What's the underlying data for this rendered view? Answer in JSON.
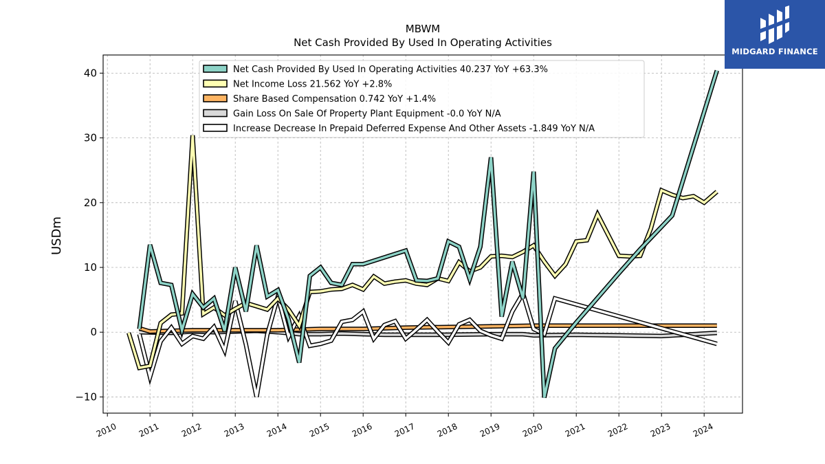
{
  "chart_data": {
    "type": "line",
    "title": "MBWM",
    "subtitle": "Net Cash Provided By Used In Operating Activities",
    "xlabel": "",
    "ylabel": "USDm",
    "xlim": [
      2009.9,
      2024.9
    ],
    "ylim": [
      -12.5,
      42.8
    ],
    "yticks": [
      -10,
      0,
      10,
      20,
      30,
      40
    ],
    "ytick_labels": [
      "−10",
      "0",
      "10",
      "20",
      "30",
      "40"
    ],
    "xticks": [
      2010,
      2011,
      2012,
      2013,
      2014,
      2015,
      2016,
      2017,
      2018,
      2019,
      2020,
      2021,
      2022,
      2023,
      2024
    ],
    "xtick_labels": [
      "2010",
      "2011",
      "2012",
      "2013",
      "2014",
      "2015",
      "2016",
      "2017",
      "2018",
      "2019",
      "2020",
      "2021",
      "2022",
      "2023",
      "2024"
    ],
    "grid": true,
    "legend_position": "top-center",
    "series": [
      {
        "name": "Net Cash Provided By Used In Operating Activities  40.237 YoY +63.3%",
        "color": "#8dd3c7",
        "points": [
          [
            2010.75,
            0.5
          ],
          [
            2011.0,
            13.5
          ],
          [
            2011.25,
            7.6
          ],
          [
            2011.5,
            7.3
          ],
          [
            2011.75,
            0.3
          ],
          [
            2012.0,
            5.9
          ],
          [
            2012.25,
            3.8
          ],
          [
            2012.5,
            5.2
          ],
          [
            2012.75,
            0.2
          ],
          [
            2013.0,
            10.0
          ],
          [
            2013.25,
            3.2
          ],
          [
            2013.5,
            13.4
          ],
          [
            2013.75,
            5.5
          ],
          [
            2014.0,
            6.5
          ],
          [
            2014.25,
            2.0
          ],
          [
            2014.5,
            -4.7
          ],
          [
            2014.75,
            8.7
          ],
          [
            2015.0,
            10.0
          ],
          [
            2015.25,
            7.6
          ],
          [
            2015.5,
            7.3
          ],
          [
            2015.75,
            10.5
          ],
          [
            2016.0,
            10.5
          ],
          [
            2017.0,
            12.6
          ],
          [
            2017.25,
            8.0
          ],
          [
            2017.5,
            7.9
          ],
          [
            2017.75,
            8.3
          ],
          [
            2018.0,
            14.0
          ],
          [
            2018.25,
            13.2
          ],
          [
            2018.5,
            8.2
          ],
          [
            2018.75,
            13.2
          ],
          [
            2019.0,
            27.0
          ],
          [
            2019.25,
            2.4
          ],
          [
            2019.5,
            10.9
          ],
          [
            2019.75,
            5.2
          ],
          [
            2020.0,
            24.8
          ],
          [
            2020.25,
            -10.1
          ],
          [
            2020.5,
            -2.5
          ],
          [
            2021.0,
            1.5
          ],
          [
            2022.0,
            9.1
          ],
          [
            2022.5,
            12.8
          ],
          [
            2023.25,
            18.0
          ],
          [
            2024.3,
            40.4
          ]
        ]
      },
      {
        "name": "Net Income Loss  21.562 YoY +2.8%",
        "color": "#ffffb3",
        "points": [
          [
            2010.5,
            -0.1
          ],
          [
            2010.75,
            -5.5
          ],
          [
            2011.0,
            -5.2
          ],
          [
            2011.25,
            1.4
          ],
          [
            2011.5,
            2.7
          ],
          [
            2011.75,
            2.9
          ],
          [
            2012.0,
            30.4
          ],
          [
            2012.25,
            2.8
          ],
          [
            2012.5,
            3.8
          ],
          [
            2012.75,
            2.6
          ],
          [
            2013.0,
            3.6
          ],
          [
            2013.25,
            4.5
          ],
          [
            2013.5,
            4.0
          ],
          [
            2013.75,
            3.5
          ],
          [
            2014.0,
            5.2
          ],
          [
            2014.25,
            3.5
          ],
          [
            2014.5,
            1.0
          ],
          [
            2014.75,
            6.2
          ],
          [
            2015.0,
            6.3
          ],
          [
            2015.25,
            6.6
          ],
          [
            2015.5,
            6.7
          ],
          [
            2015.75,
            7.3
          ],
          [
            2016.0,
            6.6
          ],
          [
            2016.25,
            8.6
          ],
          [
            2016.5,
            7.5
          ],
          [
            2016.75,
            7.8
          ],
          [
            2017.0,
            8.0
          ],
          [
            2017.25,
            7.5
          ],
          [
            2017.5,
            7.3
          ],
          [
            2017.75,
            8.3
          ],
          [
            2018.0,
            7.9
          ],
          [
            2018.25,
            10.8
          ],
          [
            2018.5,
            9.4
          ],
          [
            2018.75,
            10.0
          ],
          [
            2019.0,
            11.7
          ],
          [
            2019.25,
            11.8
          ],
          [
            2019.5,
            11.6
          ],
          [
            2019.75,
            12.4
          ],
          [
            2020.0,
            13.4
          ],
          [
            2020.25,
            10.9
          ],
          [
            2020.5,
            8.7
          ],
          [
            2020.75,
            10.5
          ],
          [
            2021.0,
            14.0
          ],
          [
            2021.25,
            14.2
          ],
          [
            2021.5,
            18.2
          ],
          [
            2021.75,
            15.0
          ],
          [
            2022.0,
            11.8
          ],
          [
            2022.25,
            11.7
          ],
          [
            2022.5,
            11.8
          ],
          [
            2022.75,
            16.0
          ],
          [
            2023.0,
            21.9
          ],
          [
            2023.25,
            21.2
          ],
          [
            2023.5,
            20.7
          ],
          [
            2023.75,
            21.0
          ],
          [
            2024.0,
            20.0
          ],
          [
            2024.3,
            21.7
          ]
        ]
      },
      {
        "name": "Share Based Compensation  0.742 YoY +1.4%",
        "color": "#fdb462",
        "points": [
          [
            2010.75,
            0.6
          ],
          [
            2011.0,
            0.1
          ],
          [
            2011.5,
            0.2
          ],
          [
            2012.0,
            0.3
          ],
          [
            2012.5,
            0.3
          ],
          [
            2013.0,
            0.3
          ],
          [
            2014.0,
            0.3
          ],
          [
            2015.0,
            0.5
          ],
          [
            2016.0,
            0.5
          ],
          [
            2017.0,
            0.7
          ],
          [
            2018.0,
            0.8
          ],
          [
            2019.0,
            0.9
          ],
          [
            2020.0,
            1.0
          ],
          [
            2021.0,
            1.0
          ],
          [
            2022.0,
            1.0
          ],
          [
            2023.0,
            1.0
          ],
          [
            2024.3,
            1.0
          ]
        ]
      },
      {
        "name": "Gain Loss On Sale Of Property Plant Equipment  -0.0 YoY N/A",
        "color": "#d9d9d9",
        "points": [
          [
            2010.75,
            0.0
          ],
          [
            2011.5,
            -0.1
          ],
          [
            2012.0,
            0.1
          ],
          [
            2012.5,
            0.0
          ],
          [
            2013.0,
            0.1
          ],
          [
            2013.5,
            0.2
          ],
          [
            2014.0,
            0.0
          ],
          [
            2014.5,
            -0.3
          ],
          [
            2015.0,
            -0.3
          ],
          [
            2015.5,
            -0.2
          ],
          [
            2016.0,
            -0.3
          ],
          [
            2016.5,
            -0.4
          ],
          [
            2017.0,
            -0.4
          ],
          [
            2018.0,
            -0.4
          ],
          [
            2019.0,
            -0.3
          ],
          [
            2019.75,
            -0.3
          ],
          [
            2020.0,
            -0.5
          ],
          [
            2021.0,
            -0.4
          ],
          [
            2022.0,
            -0.5
          ],
          [
            2023.0,
            -0.6
          ],
          [
            2024.3,
            -0.1
          ]
        ]
      },
      {
        "name": "Increase Decrease In Prepaid Deferred Expense And Other Assets  -1.849 YoY N/A",
        "color": "#ffffff",
        "points": [
          [
            2010.75,
            -0.3
          ],
          [
            2011.0,
            -6.9
          ],
          [
            2011.25,
            -1.4
          ],
          [
            2011.5,
            0.7
          ],
          [
            2011.75,
            -1.8
          ],
          [
            2012.0,
            -0.6
          ],
          [
            2012.25,
            -1.0
          ],
          [
            2012.5,
            0.8
          ],
          [
            2012.75,
            -2.8
          ],
          [
            2013.0,
            4.8
          ],
          [
            2013.25,
            -1.9
          ],
          [
            2013.5,
            -10.0
          ],
          [
            2013.75,
            -0.4
          ],
          [
            2014.0,
            5.5
          ],
          [
            2014.25,
            -0.7
          ],
          [
            2014.5,
            2.5
          ],
          [
            2014.75,
            -2.1
          ],
          [
            2015.0,
            -1.8
          ],
          [
            2015.25,
            -1.3
          ],
          [
            2015.5,
            1.6
          ],
          [
            2015.75,
            1.9
          ],
          [
            2016.0,
            3.2
          ],
          [
            2016.25,
            -1.0
          ],
          [
            2016.5,
            1.1
          ],
          [
            2016.75,
            1.7
          ],
          [
            2017.0,
            -1.0
          ],
          [
            2017.25,
            0.4
          ],
          [
            2017.5,
            1.9
          ],
          [
            2017.75,
            0.1
          ],
          [
            2018.0,
            -1.6
          ],
          [
            2018.25,
            1.2
          ],
          [
            2018.5,
            1.9
          ],
          [
            2018.75,
            0.2
          ],
          [
            2019.0,
            -0.5
          ],
          [
            2019.25,
            -1.0
          ],
          [
            2019.5,
            3.2
          ],
          [
            2019.75,
            6.0
          ],
          [
            2020.0,
            0.5
          ],
          [
            2020.25,
            -0.3
          ],
          [
            2020.5,
            5.2
          ],
          [
            2024.3,
            -1.8
          ]
        ]
      }
    ]
  },
  "logo": {
    "text": "MIDGARD FINANCE"
  }
}
